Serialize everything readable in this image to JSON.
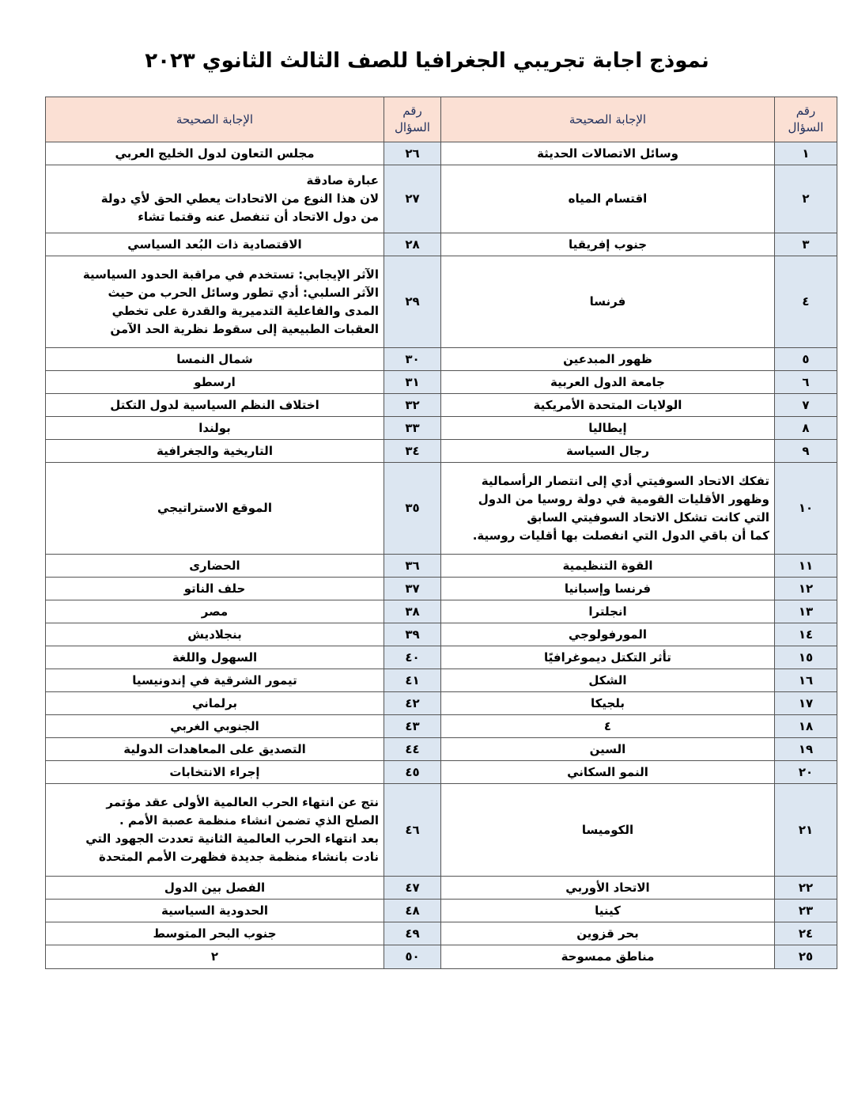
{
  "title": "نموذج اجابة تجريبي الجغرافيا للصف الثالث الثانوي ٢٠٢٣",
  "headers": {
    "number": "رقم السؤال",
    "number_l1": "رقم",
    "number_l2": "السؤال",
    "answer": "الإجابة الصحيحة"
  },
  "colors": {
    "header_bg": "#fbe0d4",
    "number_bg": "#dce6f1",
    "header_text": "#1f2f5c"
  },
  "rows": [
    {
      "n1": "١",
      "a1": [
        "وسائل الاتصالات الحديثة"
      ],
      "n2": "٢٦",
      "a2": [
        "مجلس التعاون لدول الخليج العربي"
      ]
    },
    {
      "n1": "٢",
      "a1": [
        "اقتسام المياه"
      ],
      "n2": "٢٧",
      "a2": [
        "عبارة صادقة",
        "لان هذا النوع من الاتحادات يعطي الحق لأي دولة",
        "من دول الاتحاد أن تنفصل عنه وقتما تشاء"
      ]
    },
    {
      "n1": "٣",
      "a1": [
        "جنوب إفريقيا"
      ],
      "n2": "٢٨",
      "a2": [
        "الاقتصادية ذات البُعد السياسي"
      ]
    },
    {
      "n1": "٤",
      "a1": [
        "فرنسا"
      ],
      "n2": "٢٩",
      "a2": [
        "الآثر الإيجابي: تستخدم في مراقبة الحدود السياسية",
        "الآثر السلبي: أدي تطور وسائل الحرب من حيث",
        "المدى والفاعلية التدميرية والقدرة على تخطي",
        "العقبات الطبيعية إلى سقوط نظرية الحد الآمن"
      ]
    },
    {
      "n1": "٥",
      "a1": [
        "ظهور المبدعين"
      ],
      "n2": "٣٠",
      "a2": [
        "شمال النمسا"
      ]
    },
    {
      "n1": "٦",
      "a1": [
        "جامعة الدول العربية"
      ],
      "n2": "٣١",
      "a2": [
        "ارسطو"
      ]
    },
    {
      "n1": "٧",
      "a1": [
        "الولايات المتحدة الأمريكية"
      ],
      "n2": "٣٢",
      "a2": [
        "اختلاف النظم السياسية لدول التكتل"
      ]
    },
    {
      "n1": "٨",
      "a1": [
        "إيطاليا"
      ],
      "n2": "٣٣",
      "a2": [
        "بولندا"
      ]
    },
    {
      "n1": "٩",
      "a1": [
        "رجال السياسة"
      ],
      "n2": "٣٤",
      "a2": [
        "التاريخية والجغرافية"
      ]
    },
    {
      "n1": "١٠",
      "a1": [
        "تفكك الاتحاد السوفيتي أدي إلى انتصار الرأسمالية",
        "وظهور الأقليات القومية في دولة روسيا من الدول",
        "التي كانت تشكل الاتحاد السوفيتي السابق",
        "كما أن باقي الدول التي انفصلت بها أقليات روسية."
      ],
      "n2": "٣٥",
      "a2": [
        "الموقع الاستراتيجي"
      ]
    },
    {
      "n1": "١١",
      "a1": [
        "القوة التنظيمية"
      ],
      "n2": "٣٦",
      "a2": [
        "الحضارى"
      ]
    },
    {
      "n1": "١٢",
      "a1": [
        "فرنسا وإسبانيا"
      ],
      "n2": "٣٧",
      "a2": [
        "حلف الناتو"
      ]
    },
    {
      "n1": "١٣",
      "a1": [
        "انجلترا"
      ],
      "n2": "٣٨",
      "a2": [
        "مصر"
      ]
    },
    {
      "n1": "١٤",
      "a1": [
        "المورفولوجي"
      ],
      "n2": "٣٩",
      "a2": [
        "بنجلاديش"
      ]
    },
    {
      "n1": "١٥",
      "a1": [
        "تأثر التكتل ديموغرافيًا"
      ],
      "n2": "٤٠",
      "a2": [
        "السهول واللغة"
      ]
    },
    {
      "n1": "١٦",
      "a1": [
        "الشكل"
      ],
      "n2": "٤١",
      "a2": [
        "تيمور الشرقية في إندونيسيا"
      ]
    },
    {
      "n1": "١٧",
      "a1": [
        "بلجيكا"
      ],
      "n2": "٤٢",
      "a2": [
        "برلماني"
      ]
    },
    {
      "n1": "١٨",
      "a1": [
        "٤"
      ],
      "n2": "٤٣",
      "a2": [
        "الجنوبي الغربي"
      ]
    },
    {
      "n1": "١٩",
      "a1": [
        "السين"
      ],
      "n2": "٤٤",
      "a2": [
        "التصديق على المعاهدات الدولية"
      ]
    },
    {
      "n1": "٢٠",
      "a1": [
        "النمو السكاني"
      ],
      "n2": "٤٥",
      "a2": [
        "إجراء الانتخابات"
      ]
    },
    {
      "n1": "٢١",
      "a1": [
        "الكوميسا"
      ],
      "n2": "٤٦",
      "a2": [
        "نتج عن انتهاء الحرب العالمية الأولى عقد مؤتمر",
        "الصلح الذي تضمن انشاء منظمة عصبة الأمم .",
        "بعد انتهاء الحرب العالمية الثانية تعددت الجهود التي",
        "نادت بانشاء منظمة جديدة فظهرت الأمم المتحدة"
      ]
    },
    {
      "n1": "٢٢",
      "a1": [
        "الاتحاد الأوربي"
      ],
      "n2": "٤٧",
      "a2": [
        "الفصل بين الدول"
      ]
    },
    {
      "n1": "٢٣",
      "a1": [
        "كينيا"
      ],
      "n2": "٤٨",
      "a2": [
        "الحدودية السياسية"
      ]
    },
    {
      "n1": "٢٤",
      "a1": [
        "بحر قزوين"
      ],
      "n2": "٤٩",
      "a2": [
        "جنوب البحر المتوسط"
      ]
    },
    {
      "n1": "٢٥",
      "a1": [
        "مناطق ممسوحة"
      ],
      "n2": "٥٠",
      "a2": [
        "٢"
      ]
    }
  ]
}
